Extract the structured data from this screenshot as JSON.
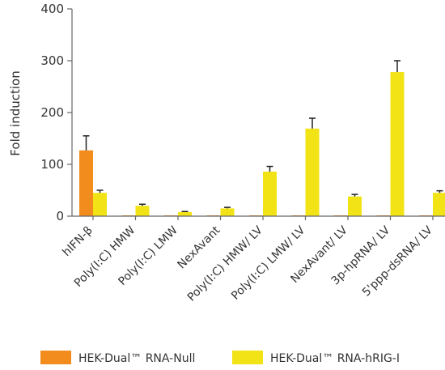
{
  "chart_data": {
    "type": "bar",
    "ylabel": "Fold induction",
    "ylim": [
      0,
      400
    ],
    "yticks": [
      0,
      100,
      200,
      300,
      400
    ],
    "categories": [
      "hIFN-β",
      "Poly(I:C) HMW",
      "Poly(I:C) LMW",
      "NexAvant",
      "Poly(I:C) HMW/ LV",
      "Poly(I:C) LMW/ LV",
      "NexAvant/ LV",
      "3p-hpRNA/ LV",
      "5'ppp-dsRNA/ LV"
    ],
    "series": [
      {
        "name": "HEK-Dual™ RNA-Null",
        "color": "#f28c1c",
        "values": [
          127,
          1,
          1,
          0,
          0,
          0,
          1,
          1,
          0
        ],
        "errors": [
          28,
          0,
          0,
          0,
          0,
          0,
          0,
          0,
          0
        ]
      },
      {
        "name": "HEK-Dual™ RNA-hRIG-I",
        "color": "#f2e316",
        "values": [
          45,
          20,
          8,
          15,
          86,
          169,
          38,
          278,
          45
        ],
        "errors": [
          5,
          3,
          1,
          2,
          10,
          20,
          4,
          22,
          4
        ]
      }
    ],
    "grid": false,
    "legend": "bottom"
  }
}
